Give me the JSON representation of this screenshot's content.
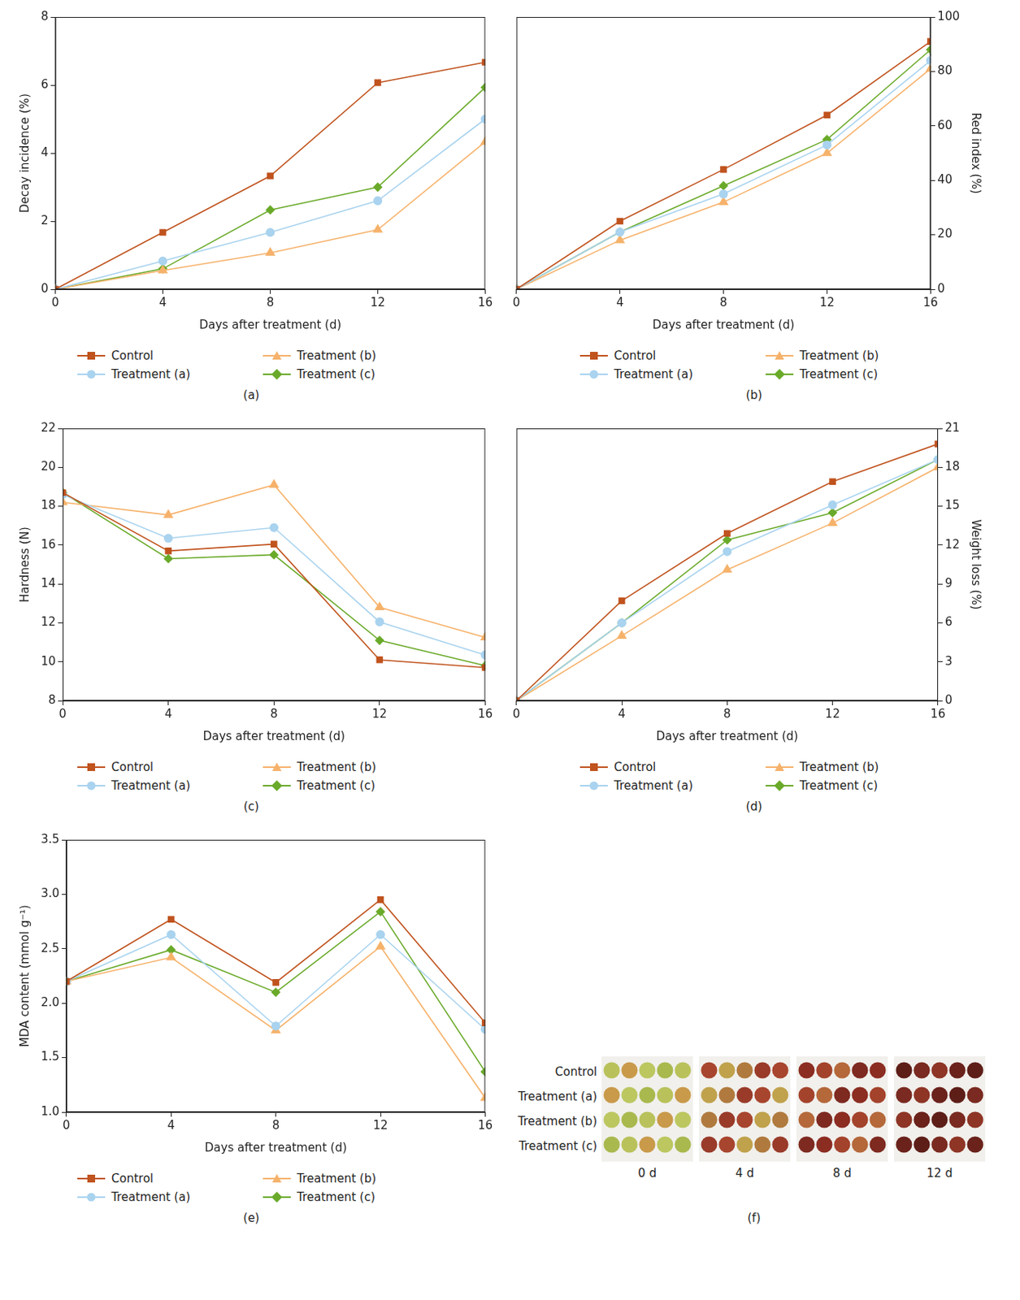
{
  "chart_data": [
    {
      "type": "line",
      "title": "(a)",
      "x_label": "Days after treatment (d)",
      "y_label": "Decay incidence (%)",
      "x": [
        0,
        4,
        8,
        12,
        16
      ],
      "xlim": [
        0,
        16
      ],
      "xticks": [
        0,
        4,
        8,
        12,
        16
      ],
      "ylim": [
        0,
        8
      ],
      "yticks": [
        0,
        2,
        4,
        6,
        8
      ],
      "grid": false,
      "legend": "bottom",
      "series": [
        {
          "name": "Control",
          "color": "#c0531e",
          "marker": "square",
          "values": [
            0,
            1.67,
            3.33,
            6.07,
            6.67
          ]
        },
        {
          "name": "Treatment (a)",
          "color": "#a9d3ef",
          "marker": "circle",
          "values": [
            0,
            0.83,
            1.67,
            2.6,
            5.0
          ]
        },
        {
          "name": "Treatment (b)",
          "color": "#f6b26b",
          "marker": "triangle",
          "values": [
            0,
            0.55,
            1.07,
            1.75,
            4.33
          ]
        },
        {
          "name": "Treatment (c)",
          "color": "#6aaa2a",
          "marker": "diamond",
          "values": [
            0,
            0.6,
            2.33,
            3.0,
            5.93
          ]
        }
      ]
    },
    {
      "type": "line",
      "title": "(b)",
      "x_label": "Days after treatment (d)",
      "y2_label": "Red index (%)",
      "x": [
        0,
        4,
        8,
        12,
        16
      ],
      "xlim": [
        0,
        16
      ],
      "xticks": [
        0,
        4,
        8,
        12,
        16
      ],
      "y2lim": [
        0,
        100
      ],
      "y2ticks": [
        0,
        20,
        40,
        60,
        80,
        100
      ],
      "grid": false,
      "legend": "bottom",
      "series": [
        {
          "name": "Control",
          "color": "#c0531e",
          "marker": "square",
          "axis": "y2",
          "values": [
            0,
            25,
            44,
            64,
            91
          ]
        },
        {
          "name": "Treatment (a)",
          "color": "#a9d3ef",
          "marker": "circle",
          "axis": "y2",
          "values": [
            0,
            21,
            35,
            53,
            84
          ]
        },
        {
          "name": "Treatment (b)",
          "color": "#f6b26b",
          "marker": "triangle",
          "axis": "y2",
          "values": [
            0,
            18,
            32,
            50,
            81
          ]
        },
        {
          "name": "Treatment (c)",
          "color": "#6aaa2a",
          "marker": "diamond",
          "axis": "y2",
          "values": [
            0,
            21,
            38,
            55,
            88
          ]
        }
      ]
    },
    {
      "type": "line",
      "title": "(c)",
      "x_label": "Days after treatment (d)",
      "y_label": "Hardness (N)",
      "x": [
        0,
        4,
        8,
        12,
        16
      ],
      "xlim": [
        0,
        16
      ],
      "xticks": [
        0,
        4,
        8,
        12,
        16
      ],
      "ylim": [
        8,
        22
      ],
      "yticks": [
        8,
        10,
        12,
        14,
        16,
        18,
        20,
        22
      ],
      "grid": false,
      "legend": "bottom",
      "series": [
        {
          "name": "Control",
          "color": "#c0531e",
          "marker": "square",
          "values": [
            18.7,
            15.7,
            16.05,
            10.1,
            9.7
          ]
        },
        {
          "name": "Treatment (a)",
          "color": "#a9d3ef",
          "marker": "circle",
          "values": [
            18.6,
            16.35,
            16.9,
            12.05,
            10.35
          ]
        },
        {
          "name": "Treatment (b)",
          "color": "#f6b26b",
          "marker": "triangle",
          "values": [
            18.2,
            17.55,
            19.1,
            12.8,
            11.25
          ]
        },
        {
          "name": "Treatment (c)",
          "color": "#6aaa2a",
          "marker": "diamond",
          "values": [
            18.7,
            15.3,
            15.5,
            11.1,
            9.8
          ]
        }
      ]
    },
    {
      "type": "line",
      "title": "(d)",
      "x_label": "Days after treatment (d)",
      "y2_label": "Weight loss (%)",
      "x": [
        0,
        4,
        8,
        12,
        16
      ],
      "xlim": [
        0,
        16
      ],
      "xticks": [
        0,
        4,
        8,
        12,
        16
      ],
      "y2lim": [
        0,
        21
      ],
      "y2ticks": [
        0,
        3,
        6,
        9,
        12,
        15,
        18,
        21
      ],
      "grid": false,
      "legend": "bottom",
      "series": [
        {
          "name": "Control",
          "color": "#c0531e",
          "marker": "square",
          "axis": "y2",
          "values": [
            0,
            7.7,
            12.9,
            16.9,
            19.8
          ]
        },
        {
          "name": "Treatment (a)",
          "color": "#a9d3ef",
          "marker": "circle",
          "axis": "y2",
          "values": [
            0,
            6.0,
            11.5,
            15.1,
            18.6
          ]
        },
        {
          "name": "Treatment (b)",
          "color": "#f6b26b",
          "marker": "triangle",
          "axis": "y2",
          "values": [
            0,
            5.0,
            10.1,
            13.7,
            18.0
          ]
        },
        {
          "name": "Treatment (c)",
          "color": "#6aaa2a",
          "marker": "diamond",
          "axis": "y2",
          "values": [
            0,
            6.0,
            12.4,
            14.5,
            18.6
          ]
        }
      ]
    },
    {
      "type": "line",
      "title": "(e)",
      "x_label": "Days after treatment (d)",
      "y_label": "MDA content (mmol g⁻¹)",
      "x": [
        0,
        4,
        8,
        12,
        16
      ],
      "xlim": [
        0,
        16
      ],
      "xticks": [
        0,
        4,
        8,
        12,
        16
      ],
      "ylim": [
        1,
        3.5
      ],
      "yticks": [
        {
          "value": 1,
          "label": "1.0"
        },
        1.5,
        {
          "value": 2,
          "label": "2.0"
        },
        2.5,
        {
          "value": 3,
          "label": "3.0"
        },
        3.5
      ],
      "grid": false,
      "legend": "bottom",
      "series": [
        {
          "name": "Control",
          "color": "#c0531e",
          "marker": "square",
          "values": [
            2.2,
            2.77,
            2.19,
            2.95,
            1.82
          ]
        },
        {
          "name": "Treatment (a)",
          "color": "#a9d3ef",
          "marker": "circle",
          "values": [
            2.2,
            2.63,
            1.79,
            2.63,
            1.76
          ]
        },
        {
          "name": "Treatment (b)",
          "color": "#f6b26b",
          "marker": "triangle",
          "values": [
            2.2,
            2.42,
            1.75,
            2.52,
            1.13
          ]
        },
        {
          "name": "Treatment (c)",
          "color": "#6aaa2a",
          "marker": "diamond",
          "values": [
            2.2,
            2.49,
            2.1,
            2.84,
            1.37
          ]
        }
      ]
    }
  ],
  "photo_panel": {
    "title": "(f)",
    "rows": [
      "Control",
      "Treatment (a)",
      "Treatment (b)",
      "Treatment (c)"
    ],
    "columns": [
      "0 d",
      "4 d",
      "8 d",
      "12 d"
    ]
  }
}
